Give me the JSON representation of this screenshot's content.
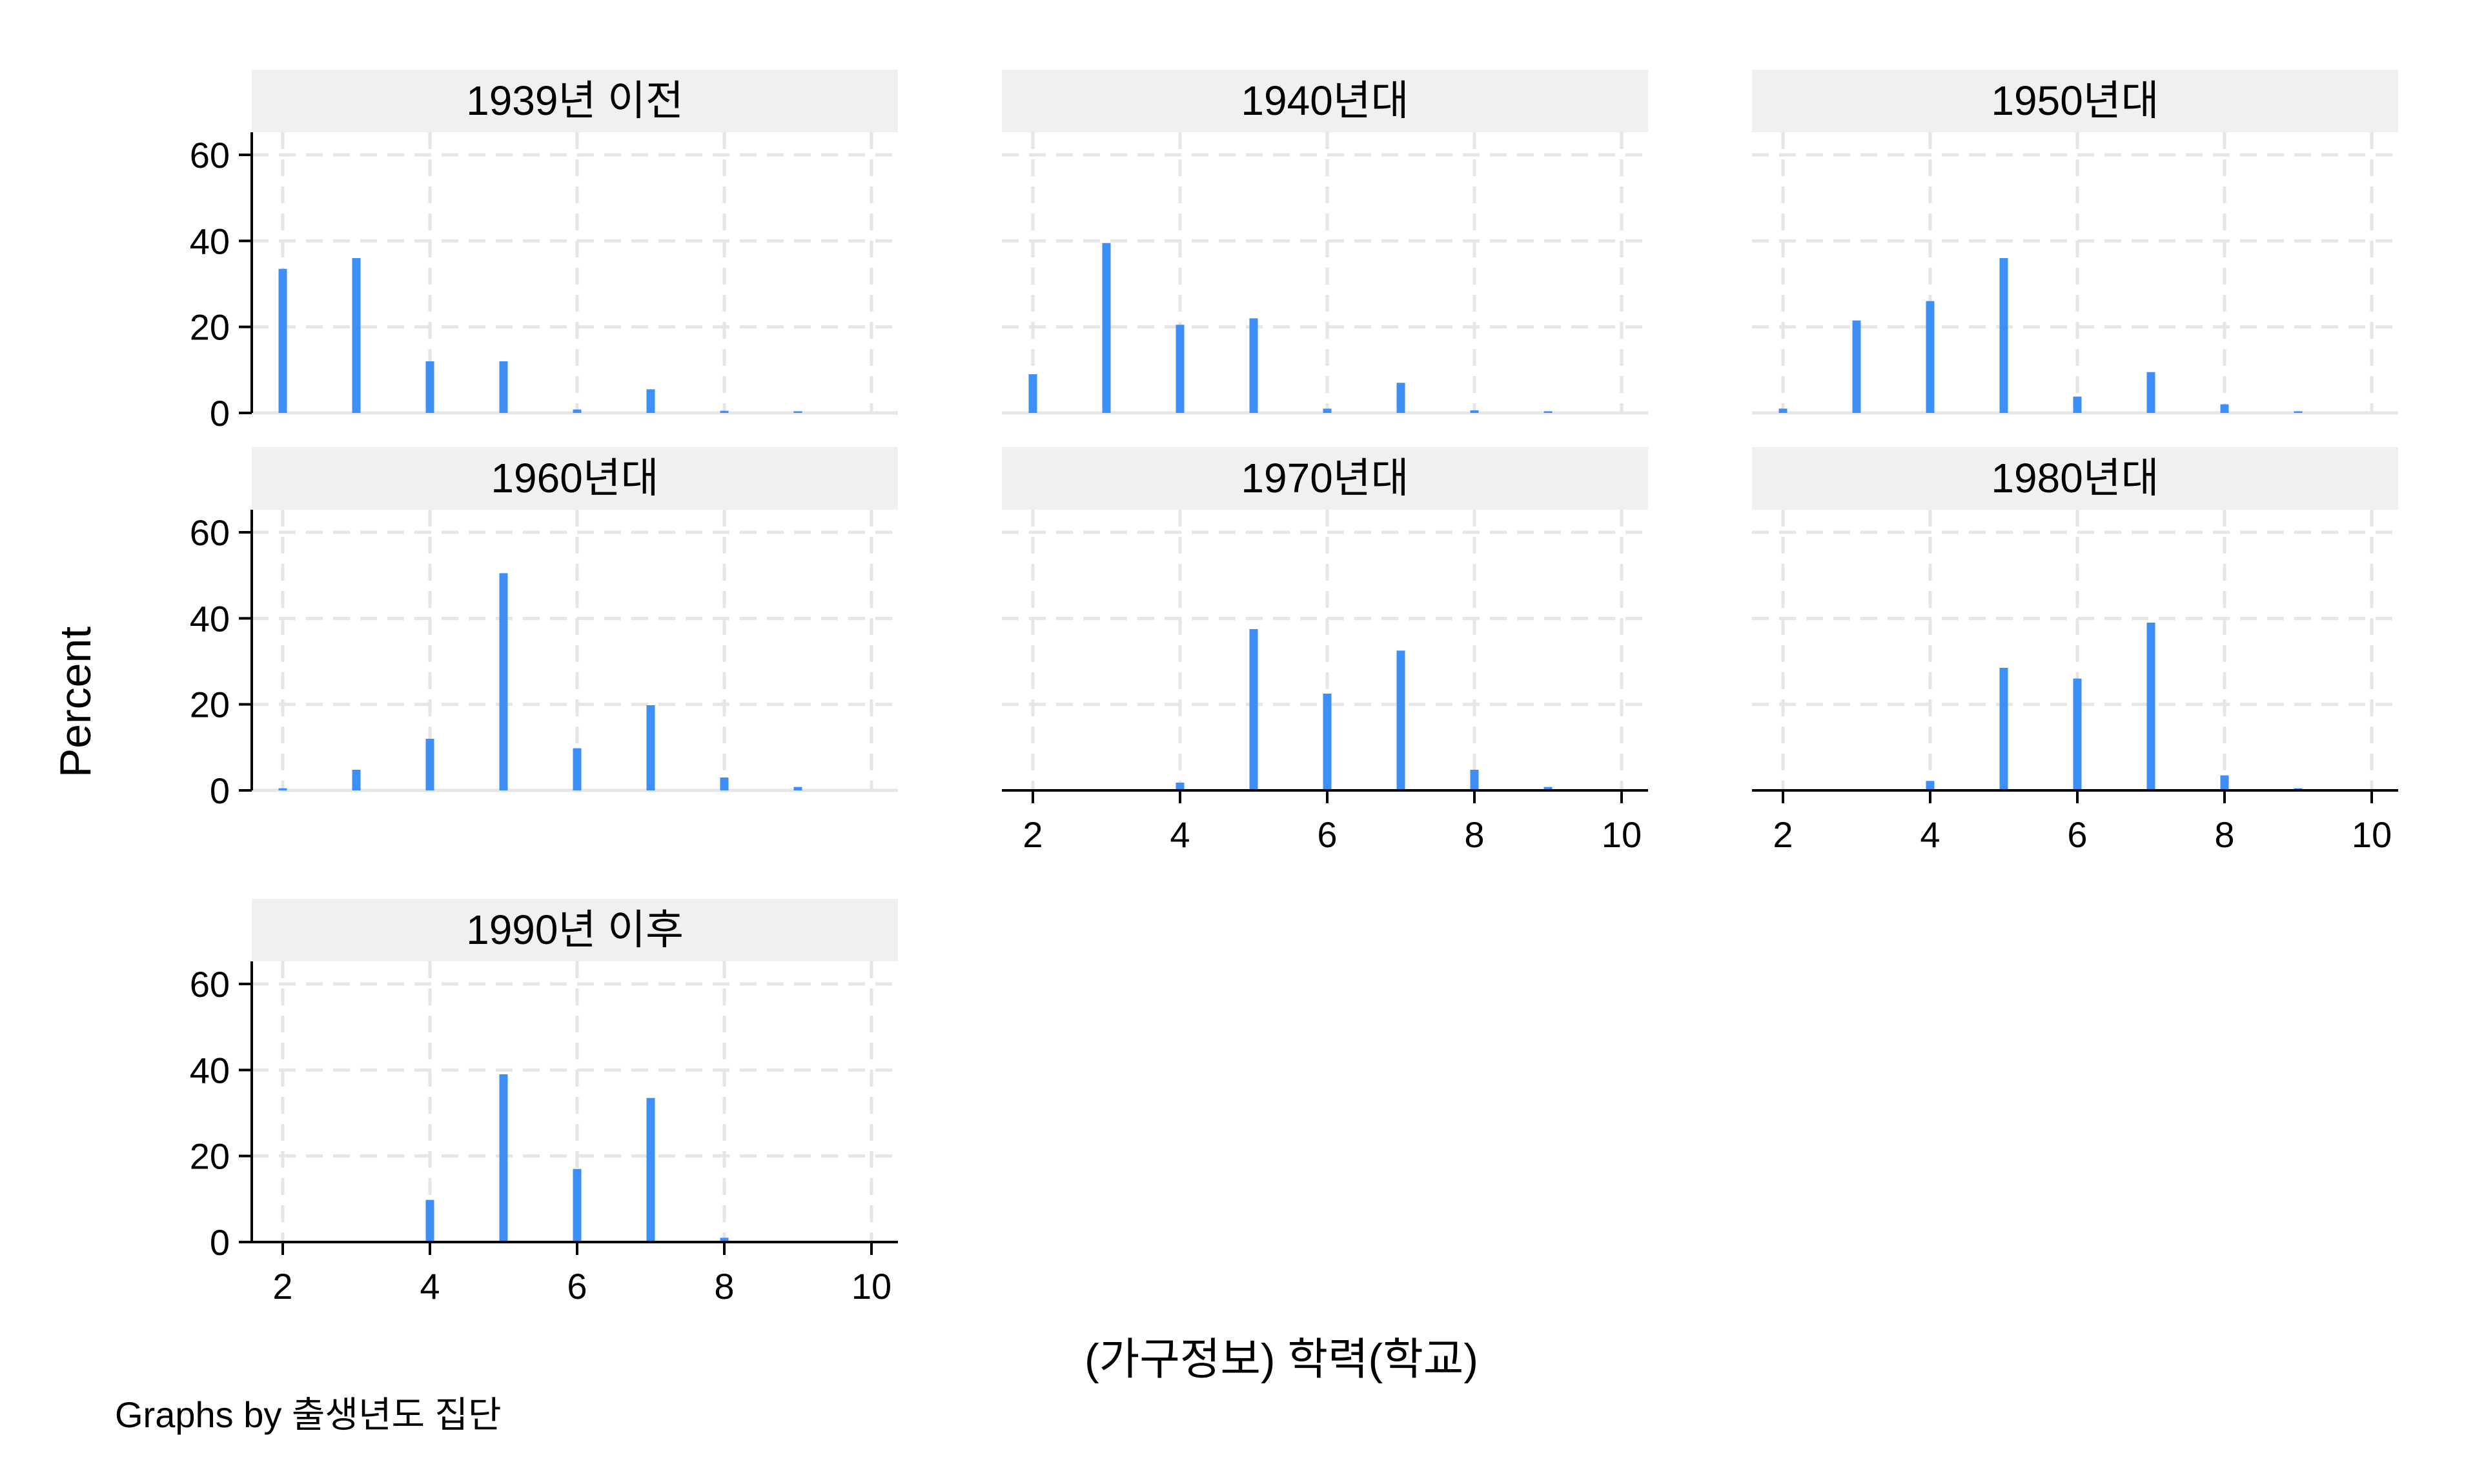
{
  "figure": {
    "ylabel": "Percent",
    "xlabel": "(가구정보) 학력(학교)",
    "note": "Graphs by 출생년도 집단"
  },
  "colors": {
    "bar": "#3d8ef5",
    "panel_header": "#f0f0f0",
    "grid": "#e6e6e6",
    "axis": "#000000"
  },
  "chart_data": {
    "type": "bar",
    "xlim": [
      2,
      10
    ],
    "ylim": [
      0,
      60
    ],
    "xticks": [
      2,
      4,
      6,
      8,
      10
    ],
    "yticks": [
      0,
      20,
      40,
      60
    ],
    "grid": true,
    "categories": [
      2,
      3,
      4,
      5,
      6,
      7,
      8,
      9
    ],
    "panels": [
      {
        "title": "1939년 이전",
        "values": [
          33.5,
          36,
          12,
          12,
          0.8,
          5.5,
          0.5,
          0.4
        ]
      },
      {
        "title": "1940년대",
        "values": [
          9,
          39.5,
          20.5,
          22,
          1,
          7,
          0.6,
          0.4
        ]
      },
      {
        "title": "1950년대",
        "values": [
          1,
          21.5,
          26,
          36,
          3.8,
          9.5,
          2,
          0.4
        ]
      },
      {
        "title": "1960년대",
        "values": [
          0.5,
          4.8,
          12,
          50.5,
          9.8,
          19.8,
          3,
          0.8
        ]
      },
      {
        "title": "1970년대",
        "values": [
          0.1,
          0.3,
          1.8,
          37.5,
          22.5,
          32.5,
          4.8,
          0.8
        ]
      },
      {
        "title": "1980년대",
        "values": [
          0.1,
          0.3,
          2.2,
          28.5,
          26,
          39,
          3.5,
          0.5
        ]
      },
      {
        "title": "1990년 이후",
        "values": [
          0.2,
          0.3,
          9.8,
          39,
          17,
          33.5,
          1,
          0.3
        ]
      }
    ]
  }
}
